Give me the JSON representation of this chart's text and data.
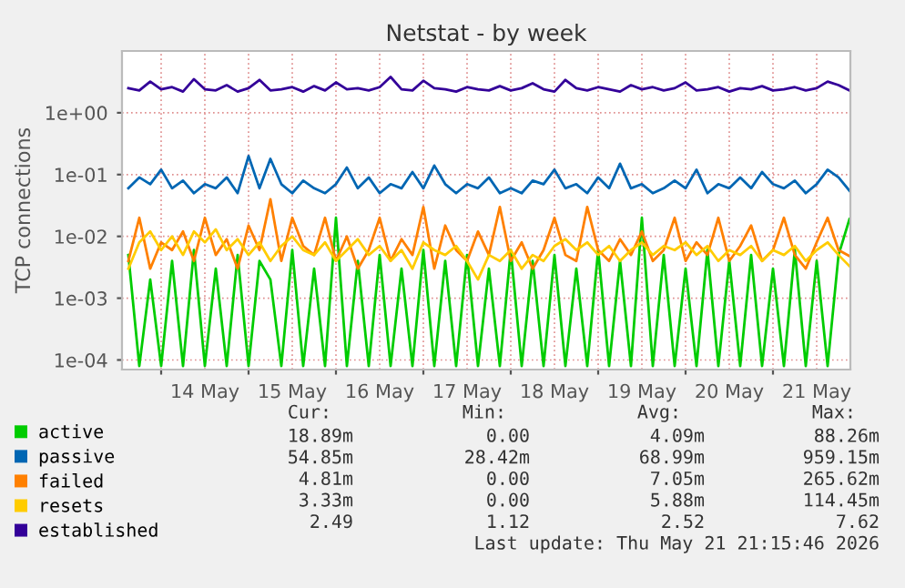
{
  "chart_data": {
    "type": "line",
    "title": "Netstat - by week",
    "ylabel": "TCP connections",
    "log": "y",
    "grid": true,
    "legend": "bottom",
    "xlim": [
      "2026-05-13T13:15",
      "2026-05-21T21:15"
    ],
    "ylim": [
      7e-05,
      10
    ],
    "yticks": [
      {
        "value": 0.0001,
        "label": "1e-04"
      },
      {
        "value": 0.001,
        "label": "1e-03"
      },
      {
        "value": 0.01,
        "label": "1e-02"
      },
      {
        "value": 0.1,
        "label": "1e-01"
      },
      {
        "value": 1,
        "label": "1e+00"
      }
    ],
    "xticks": [
      {
        "value": "2026-05-14T00:00",
        "label": null
      },
      {
        "value": "2026-05-15T00:00",
        "label": null
      },
      {
        "value": "2026-05-16T00:00",
        "label": null
      },
      {
        "value": "2026-05-17T00:00",
        "label": null
      },
      {
        "value": "2026-05-18T00:00",
        "label": null
      },
      {
        "value": "2026-05-19T00:00",
        "label": null
      },
      {
        "value": "2026-05-20T00:00",
        "label": null
      },
      {
        "value": "2026-05-21T00:00",
        "label": null
      },
      {
        "value": "2026-05-14T12:00",
        "label": "14 May"
      },
      {
        "value": "2026-05-15T12:00",
        "label": "15 May"
      },
      {
        "value": "2026-05-16T12:00",
        "label": "16 May"
      },
      {
        "value": "2026-05-17T12:00",
        "label": "17 May"
      },
      {
        "value": "2026-05-18T12:00",
        "label": "18 May"
      },
      {
        "value": "2026-05-19T12:00",
        "label": "19 May"
      },
      {
        "value": "2026-05-20T12:00",
        "label": "20 May"
      },
      {
        "value": "2026-05-21T12:00",
        "label": "21 May"
      }
    ],
    "x": [
      "2026-05-13T15:00",
      "2026-05-13T18:00",
      "2026-05-13T21:00",
      "2026-05-14T00:00",
      "2026-05-14T03:00",
      "2026-05-14T06:00",
      "2026-05-14T09:00",
      "2026-05-14T12:00",
      "2026-05-14T15:00",
      "2026-05-14T18:00",
      "2026-05-14T21:00",
      "2026-05-15T00:00",
      "2026-05-15T03:00",
      "2026-05-15T06:00",
      "2026-05-15T09:00",
      "2026-05-15T12:00",
      "2026-05-15T15:00",
      "2026-05-15T18:00",
      "2026-05-15T21:00",
      "2026-05-16T00:00",
      "2026-05-16T03:00",
      "2026-05-16T06:00",
      "2026-05-16T09:00",
      "2026-05-16T12:00",
      "2026-05-16T15:00",
      "2026-05-16T18:00",
      "2026-05-16T21:00",
      "2026-05-17T00:00",
      "2026-05-17T03:00",
      "2026-05-17T06:00",
      "2026-05-17T09:00",
      "2026-05-17T12:00",
      "2026-05-17T15:00",
      "2026-05-17T18:00",
      "2026-05-17T21:00",
      "2026-05-18T00:00",
      "2026-05-18T03:00",
      "2026-05-18T06:00",
      "2026-05-18T09:00",
      "2026-05-18T12:00",
      "2026-05-18T15:00",
      "2026-05-18T18:00",
      "2026-05-18T21:00",
      "2026-05-19T00:00",
      "2026-05-19T03:00",
      "2026-05-19T06:00",
      "2026-05-19T09:00",
      "2026-05-19T12:00",
      "2026-05-19T15:00",
      "2026-05-19T18:00",
      "2026-05-19T21:00",
      "2026-05-20T00:00",
      "2026-05-20T03:00",
      "2026-05-20T06:00",
      "2026-05-20T09:00",
      "2026-05-20T12:00",
      "2026-05-20T15:00",
      "2026-05-20T18:00",
      "2026-05-20T21:00",
      "2026-05-21T00:00",
      "2026-05-21T03:00",
      "2026-05-21T06:00",
      "2026-05-21T09:00",
      "2026-05-21T12:00",
      "2026-05-21T15:00",
      "2026-05-21T18:00",
      "2026-05-21T21:00"
    ],
    "series": [
      {
        "name": "active",
        "color": "#00cc00",
        "values": [
          0.005,
          8e-05,
          0.002,
          8e-05,
          0.004,
          8e-05,
          0.006,
          8e-05,
          0.003,
          8e-05,
          0.005,
          8e-05,
          0.004,
          0.002,
          8e-05,
          0.006,
          8e-05,
          0.003,
          8e-05,
          0.02,
          8e-05,
          0.004,
          8e-05,
          0.005,
          8e-05,
          0.003,
          8e-05,
          0.006,
          8e-05,
          0.004,
          8e-05,
          0.005,
          8e-05,
          0.003,
          8e-05,
          0.006,
          8e-05,
          0.004,
          8e-05,
          0.005,
          8e-05,
          0.003,
          8e-05,
          0.006,
          8e-05,
          0.004,
          8e-05,
          0.02,
          8e-05,
          0.005,
          8e-05,
          0.003,
          8e-05,
          0.006,
          8e-05,
          0.004,
          8e-05,
          0.005,
          8e-05,
          0.003,
          8e-05,
          0.006,
          8e-05,
          0.004,
          8e-05,
          0.005,
          0.019
        ]
      },
      {
        "name": "passive",
        "color": "#0066b3",
        "values": [
          0.06,
          0.09,
          0.07,
          0.12,
          0.06,
          0.08,
          0.05,
          0.07,
          0.06,
          0.09,
          0.05,
          0.2,
          0.06,
          0.18,
          0.07,
          0.05,
          0.08,
          0.06,
          0.05,
          0.07,
          0.13,
          0.06,
          0.09,
          0.05,
          0.07,
          0.06,
          0.11,
          0.06,
          0.14,
          0.07,
          0.05,
          0.07,
          0.06,
          0.09,
          0.05,
          0.06,
          0.05,
          0.08,
          0.07,
          0.12,
          0.06,
          0.07,
          0.05,
          0.09,
          0.06,
          0.15,
          0.06,
          0.07,
          0.05,
          0.06,
          0.08,
          0.06,
          0.12,
          0.05,
          0.07,
          0.06,
          0.09,
          0.06,
          0.11,
          0.07,
          0.06,
          0.08,
          0.05,
          0.07,
          0.12,
          0.09,
          0.055
        ]
      },
      {
        "name": "failed",
        "color": "#ff8000",
        "values": [
          0.004,
          0.02,
          0.003,
          0.008,
          0.006,
          0.012,
          0.004,
          0.02,
          0.005,
          0.009,
          0.003,
          0.015,
          0.006,
          0.04,
          0.004,
          0.02,
          0.007,
          0.005,
          0.02,
          0.004,
          0.01,
          0.003,
          0.006,
          0.02,
          0.004,
          0.009,
          0.005,
          0.03,
          0.003,
          0.015,
          0.006,
          0.004,
          0.012,
          0.005,
          0.03,
          0.004,
          0.008,
          0.003,
          0.006,
          0.02,
          0.005,
          0.004,
          0.03,
          0.006,
          0.004,
          0.009,
          0.005,
          0.012,
          0.004,
          0.006,
          0.02,
          0.004,
          0.008,
          0.005,
          0.02,
          0.004,
          0.007,
          0.015,
          0.004,
          0.006,
          0.02,
          0.005,
          0.003,
          0.008,
          0.02,
          0.006,
          0.0048
        ]
      },
      {
        "name": "resets",
        "color": "#ffcc00",
        "values": [
          0.003,
          0.008,
          0.012,
          0.006,
          0.01,
          0.005,
          0.012,
          0.008,
          0.013,
          0.006,
          0.009,
          0.005,
          0.008,
          0.004,
          0.007,
          0.01,
          0.006,
          0.005,
          0.008,
          0.004,
          0.006,
          0.009,
          0.005,
          0.007,
          0.004,
          0.006,
          0.003,
          0.008,
          0.006,
          0.005,
          0.007,
          0.004,
          0.002,
          0.005,
          0.004,
          0.006,
          0.003,
          0.005,
          0.004,
          0.007,
          0.009,
          0.006,
          0.008,
          0.005,
          0.007,
          0.004,
          0.006,
          0.008,
          0.005,
          0.007,
          0.006,
          0.008,
          0.005,
          0.007,
          0.004,
          0.006,
          0.005,
          0.007,
          0.004,
          0.006,
          0.005,
          0.007,
          0.004,
          0.006,
          0.008,
          0.005,
          0.0033
        ]
      },
      {
        "name": "established",
        "color": "#330099",
        "values": [
          2.5,
          2.3,
          3.2,
          2.4,
          2.6,
          2.2,
          3.5,
          2.4,
          2.3,
          2.8,
          2.2,
          2.5,
          3.4,
          2.3,
          2.4,
          2.6,
          2.2,
          2.7,
          2.3,
          3.1,
          2.4,
          2.5,
          2.3,
          2.6,
          3.8,
          2.4,
          2.3,
          3.3,
          2.5,
          2.4,
          2.2,
          2.6,
          2.4,
          2.3,
          2.7,
          2.3,
          2.5,
          3.0,
          2.4,
          2.2,
          3.4,
          2.5,
          2.3,
          2.6,
          2.4,
          2.2,
          2.8,
          2.4,
          2.6,
          2.3,
          2.5,
          3.1,
          2.3,
          2.4,
          2.6,
          2.2,
          2.5,
          2.4,
          2.7,
          2.3,
          2.4,
          2.6,
          2.3,
          2.5,
          3.2,
          2.8,
          2.3
        ]
      }
    ],
    "annotations": [
      "Cur:",
      "Min:",
      "Avg:",
      "Max:",
      "18.89m",
      "0.00",
      "4.09m",
      "88.26m",
      "54.85m",
      "28.42m",
      "68.99m",
      "959.15m",
      "4.81m",
      "0.00",
      "7.05m",
      "265.62m",
      "3.33m",
      "0.00",
      "5.88m",
      "114.45m",
      "2.49",
      "1.12",
      "2.52",
      "7.62",
      "Last update: Thu May 21 21:15:46 2026"
    ]
  }
}
